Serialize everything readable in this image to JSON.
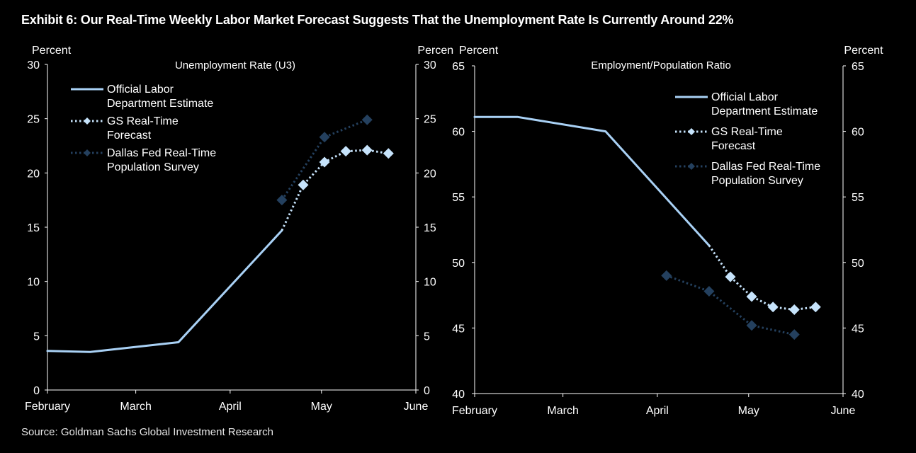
{
  "title": "Exhibit 6: Our Real-Time Weekly Labor Market Forecast Suggests That the Unemployment Rate Is Currently Around 22%",
  "source": "Source: Goldman Sachs Global Investment Research",
  "colors": {
    "background": "#000000",
    "official": "#a9d1f5",
    "gs": "#c6e3fb",
    "dallas": "#24405e",
    "axis": "#ffffff"
  },
  "chart_data": [
    {
      "type": "line",
      "title": "Unemployment  Rate (U3)",
      "ylabel_left": "Percent",
      "ylabel_right": "Percent",
      "x_axis": "date",
      "xlim": [
        "2020-02-01",
        "2020-06-01"
      ],
      "x_ticks": [
        "2020-02-01",
        "2020-03-01",
        "2020-04-01",
        "2020-05-01",
        "2020-06-01"
      ],
      "x_tick_labels": [
        "February",
        "March",
        "April",
        "May",
        "June"
      ],
      "ylim": [
        0,
        30
      ],
      "y_ticks": [
        0,
        5,
        10,
        15,
        20,
        25,
        30
      ],
      "legend": [
        "Official Labor Department Estimate",
        "GS Real-Time Forecast",
        "Dallas Fed Real-Time Population Survey"
      ],
      "legend_lines": [
        [
          "Official Labor",
          "Department Estimate"
        ],
        [
          "GS Real-Time",
          "Forecast"
        ],
        [
          "Dallas Fed Real-Time",
          "Population Survey"
        ]
      ],
      "legend_position": "top-left",
      "grid": false,
      "series": [
        {
          "name": "Official Labor Department Estimate",
          "style": "solid",
          "x": [
            "2020-02-01",
            "2020-02-15",
            "2020-03-15",
            "2020-04-18"
          ],
          "y": [
            3.6,
            3.5,
            4.4,
            14.7
          ]
        },
        {
          "name": "GS Real-Time Forecast",
          "style": "dotted-diamond",
          "x": [
            "2020-04-18",
            "2020-04-25",
            "2020-05-02",
            "2020-05-09",
            "2020-05-16",
            "2020-05-23"
          ],
          "y": [
            14.7,
            18.9,
            21.0,
            22.0,
            22.1,
            21.8
          ]
        },
        {
          "name": "Dallas Fed Real-Time Population Survey",
          "style": "dotted-diamond",
          "x": [
            "2020-04-18",
            "2020-05-02",
            "2020-05-16"
          ],
          "y": [
            17.5,
            23.3,
            24.9
          ]
        }
      ]
    },
    {
      "type": "line",
      "title": "Employment/Population  Ratio",
      "ylabel_left": "Percent",
      "ylabel_right": "Percent",
      "x_axis": "date",
      "xlim": [
        "2020-02-01",
        "2020-06-01"
      ],
      "x_ticks": [
        "2020-02-01",
        "2020-03-01",
        "2020-04-01",
        "2020-05-01",
        "2020-06-01"
      ],
      "x_tick_labels": [
        "February",
        "March",
        "April",
        "May",
        "June"
      ],
      "ylim": [
        40,
        65
      ],
      "y_ticks": [
        40,
        45,
        50,
        55,
        60,
        65
      ],
      "legend": [
        "Official Labor Department Estimate",
        "GS Real-Time Forecast",
        "Dallas Fed Real-Time Population Survey"
      ],
      "legend_lines": [
        [
          "Official Labor",
          "Department Estimate"
        ],
        [
          "GS Real-Time",
          "Forecast"
        ],
        [
          "Dallas Fed Real-Time",
          "Population Survey"
        ]
      ],
      "legend_position": "top-right",
      "grid": false,
      "series": [
        {
          "name": "Official Labor Department Estimate",
          "style": "solid",
          "x": [
            "2020-02-01",
            "2020-02-15",
            "2020-03-15",
            "2020-04-18"
          ],
          "y": [
            61.1,
            61.1,
            60.0,
            51.3
          ]
        },
        {
          "name": "GS Real-Time Forecast",
          "style": "dotted-diamond",
          "x": [
            "2020-04-18",
            "2020-04-25",
            "2020-05-02",
            "2020-05-09",
            "2020-05-16",
            "2020-05-23"
          ],
          "y": [
            51.3,
            48.9,
            47.4,
            46.6,
            46.4,
            46.6
          ]
        },
        {
          "name": "Dallas Fed Real-Time Population Survey",
          "style": "dotted-diamond",
          "x": [
            "2020-04-04",
            "2020-04-18",
            "2020-05-02",
            "2020-05-16"
          ],
          "y": [
            49.0,
            47.8,
            45.2,
            44.5
          ]
        }
      ]
    }
  ]
}
